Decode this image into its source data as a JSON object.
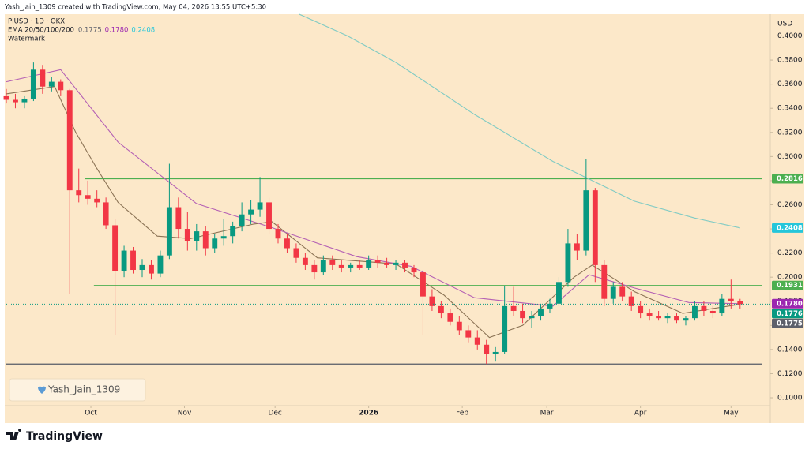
{
  "chart_data": {
    "type": "candlestick",
    "attribution": "Yash_Jain_1309 created with TradingView.com, May 04, 2026 13:55 UTC+5:30",
    "title": "PIUSD · 1D · OKX",
    "indicator": "EMA 20/50/100/200",
    "watermark_label": "Watermark",
    "currency": "USD",
    "up_color": "#089981",
    "down_color": "#f23645",
    "xlim": [
      -28,
      225
    ],
    "xticks": [
      {
        "value": 0,
        "label": "Oct"
      },
      {
        "value": 31,
        "label": "Nov"
      },
      {
        "value": 61,
        "label": "Dec"
      },
      {
        "value": 92,
        "label": "2026"
      },
      {
        "value": 123,
        "label": "Feb"
      },
      {
        "value": 151,
        "label": "Mar"
      },
      {
        "value": 182,
        "label": "Apr"
      },
      {
        "value": 212,
        "label": "May"
      }
    ],
    "ylim": [
      0.083,
      0.418
    ],
    "yticks": [
      {
        "value": 0.1,
        "label": "0.1000"
      },
      {
        "value": 0.12,
        "label": "0.1200"
      },
      {
        "value": 0.14,
        "label": "0.1400"
      },
      {
        "value": 0.16,
        "label": "0.1600"
      },
      {
        "value": 0.18,
        "label": "0.1800"
      },
      {
        "value": 0.2,
        "label": "0.2000"
      },
      {
        "value": 0.22,
        "label": "0.2200"
      },
      {
        "value": 0.24,
        "label": "0.2400"
      },
      {
        "value": 0.26,
        "label": "0.2600"
      },
      {
        "value": 0.28,
        "label": "0.2800"
      },
      {
        "value": 0.3,
        "label": "0.3000"
      },
      {
        "value": 0.32,
        "label": "0.3200"
      },
      {
        "value": 0.34,
        "label": "0.3400"
      },
      {
        "value": 0.36,
        "label": "0.3600"
      },
      {
        "value": 0.38,
        "label": "0.3800"
      },
      {
        "value": 0.4,
        "label": "0.4000"
      }
    ],
    "x": [
      -28,
      -25,
      -22,
      -19,
      -16,
      -13,
      -10,
      -7,
      -4,
      -1,
      2,
      5,
      8,
      11,
      14,
      17,
      20,
      23,
      26,
      29,
      32,
      35,
      38,
      41,
      44,
      47,
      50,
      53,
      56,
      59,
      62,
      65,
      68,
      71,
      74,
      77,
      80,
      83,
      86,
      89,
      92,
      95,
      98,
      101,
      104,
      107,
      110,
      113,
      116,
      119,
      122,
      125,
      128,
      131,
      134,
      137,
      140,
      143,
      146,
      149,
      152,
      155,
      158,
      161,
      164,
      167,
      170,
      173,
      176,
      179,
      182,
      185,
      188,
      191,
      194,
      197,
      200,
      203,
      206,
      209,
      212,
      215
    ],
    "candles": [
      [
        0.35,
        0.356,
        0.344,
        0.347
      ],
      [
        0.347,
        0.352,
        0.34,
        0.345
      ],
      [
        0.345,
        0.35,
        0.34,
        0.348
      ],
      [
        0.348,
        0.378,
        0.346,
        0.372
      ],
      [
        0.372,
        0.376,
        0.352,
        0.358
      ],
      [
        0.358,
        0.366,
        0.354,
        0.362
      ],
      [
        0.362,
        0.364,
        0.35,
        0.355
      ],
      [
        0.355,
        0.356,
        0.186,
        0.272
      ],
      [
        0.272,
        0.29,
        0.262,
        0.268
      ],
      [
        0.268,
        0.28,
        0.26,
        0.265
      ],
      [
        0.265,
        0.272,
        0.258,
        0.262
      ],
      [
        0.262,
        0.266,
        0.24,
        0.243
      ],
      [
        0.243,
        0.248,
        0.152,
        0.205
      ],
      [
        0.205,
        0.226,
        0.2,
        0.222
      ],
      [
        0.222,
        0.225,
        0.203,
        0.206
      ],
      [
        0.206,
        0.215,
        0.2,
        0.21
      ],
      [
        0.21,
        0.214,
        0.198,
        0.203
      ],
      [
        0.203,
        0.222,
        0.2,
        0.218
      ],
      [
        0.218,
        0.294,
        0.215,
        0.258
      ],
      [
        0.258,
        0.266,
        0.232,
        0.24
      ],
      [
        0.24,
        0.254,
        0.222,
        0.23
      ],
      [
        0.23,
        0.244,
        0.222,
        0.238
      ],
      [
        0.238,
        0.242,
        0.218,
        0.224
      ],
      [
        0.224,
        0.236,
        0.22,
        0.232
      ],
      [
        0.232,
        0.248,
        0.226,
        0.234
      ],
      [
        0.234,
        0.246,
        0.228,
        0.242
      ],
      [
        0.242,
        0.262,
        0.238,
        0.252
      ],
      [
        0.252,
        0.264,
        0.244,
        0.256
      ],
      [
        0.256,
        0.283,
        0.25,
        0.262
      ],
      [
        0.262,
        0.266,
        0.236,
        0.24
      ],
      [
        0.24,
        0.244,
        0.228,
        0.232
      ],
      [
        0.232,
        0.236,
        0.22,
        0.224
      ],
      [
        0.224,
        0.228,
        0.212,
        0.216
      ],
      [
        0.216,
        0.22,
        0.206,
        0.21
      ],
      [
        0.21,
        0.214,
        0.198,
        0.204
      ],
      [
        0.204,
        0.218,
        0.202,
        0.214
      ],
      [
        0.214,
        0.218,
        0.206,
        0.21
      ],
      [
        0.21,
        0.214,
        0.204,
        0.208
      ],
      [
        0.208,
        0.212,
        0.204,
        0.21
      ],
      [
        0.21,
        0.214,
        0.206,
        0.208
      ],
      [
        0.208,
        0.218,
        0.206,
        0.214
      ],
      [
        0.214,
        0.218,
        0.208,
        0.212
      ],
      [
        0.212,
        0.216,
        0.208,
        0.21
      ],
      [
        0.21,
        0.214,
        0.206,
        0.212
      ],
      [
        0.212,
        0.214,
        0.204,
        0.208
      ],
      [
        0.208,
        0.21,
        0.2,
        0.204
      ],
      [
        0.204,
        0.206,
        0.152,
        0.184
      ],
      [
        0.184,
        0.19,
        0.172,
        0.176
      ],
      [
        0.176,
        0.18,
        0.166,
        0.17
      ],
      [
        0.17,
        0.174,
        0.16,
        0.163
      ],
      [
        0.163,
        0.168,
        0.152,
        0.156
      ],
      [
        0.156,
        0.16,
        0.146,
        0.15
      ],
      [
        0.15,
        0.156,
        0.14,
        0.144
      ],
      [
        0.144,
        0.148,
        0.128,
        0.136
      ],
      [
        0.136,
        0.142,
        0.13,
        0.138
      ],
      [
        0.138,
        0.193,
        0.136,
        0.176
      ],
      [
        0.176,
        0.192,
        0.168,
        0.172
      ],
      [
        0.172,
        0.178,
        0.162,
        0.166
      ],
      [
        0.166,
        0.172,
        0.158,
        0.168
      ],
      [
        0.168,
        0.178,
        0.164,
        0.174
      ],
      [
        0.174,
        0.182,
        0.17,
        0.178
      ],
      [
        0.178,
        0.2,
        0.176,
        0.196
      ],
      [
        0.196,
        0.24,
        0.192,
        0.228
      ],
      [
        0.228,
        0.236,
        0.214,
        0.222
      ],
      [
        0.222,
        0.298,
        0.218,
        0.272
      ],
      [
        0.272,
        0.274,
        0.196,
        0.21
      ],
      [
        0.21,
        0.214,
        0.176,
        0.182
      ],
      [
        0.182,
        0.196,
        0.178,
        0.192
      ],
      [
        0.192,
        0.196,
        0.18,
        0.184
      ],
      [
        0.184,
        0.188,
        0.172,
        0.176
      ],
      [
        0.176,
        0.18,
        0.166,
        0.17
      ],
      [
        0.17,
        0.174,
        0.164,
        0.168
      ],
      [
        0.168,
        0.172,
        0.164,
        0.166
      ],
      [
        0.166,
        0.17,
        0.162,
        0.168
      ],
      [
        0.168,
        0.17,
        0.162,
        0.164
      ],
      [
        0.164,
        0.168,
        0.16,
        0.166
      ],
      [
        0.166,
        0.18,
        0.164,
        0.176
      ],
      [
        0.176,
        0.18,
        0.168,
        0.172
      ],
      [
        0.172,
        0.176,
        0.166,
        0.17
      ],
      [
        0.17,
        0.186,
        0.168,
        0.182
      ],
      [
        0.182,
        0.198,
        0.174,
        0.18
      ],
      [
        0.18,
        0.182,
        0.174,
        0.1776
      ]
    ],
    "emas": [
      {
        "color": "#8b7355",
        "tag_color": "#5d606b",
        "last_label": "0.1775",
        "x": [
          -28,
          -12,
          -5,
          2,
          9,
          22,
          33,
          54,
          60,
          75,
          101,
          117,
          132,
          143,
          160,
          166,
          180,
          196,
          215
        ],
        "values": [
          0.352,
          0.358,
          0.32,
          0.29,
          0.262,
          0.234,
          0.232,
          0.244,
          0.246,
          0.216,
          0.211,
          0.185,
          0.15,
          0.16,
          0.2,
          0.21,
          0.188,
          0.17,
          0.1775
        ]
      },
      {
        "color": "#b45fb4",
        "tag_color": "#9c27b0",
        "last_label": "0.1780",
        "x": [
          -28,
          -10,
          9,
          35,
          60,
          88,
          106,
          127,
          153,
          165,
          180,
          198,
          215
        ],
        "values": [
          0.362,
          0.372,
          0.312,
          0.261,
          0.241,
          0.217,
          0.209,
          0.183,
          0.176,
          0.202,
          0.191,
          0.179,
          0.178
        ]
      },
      {
        "color": "#80cbc4",
        "tag_color": "#26c6da",
        "last_label": "0.2408",
        "x": [
          69,
          85,
          101,
          127,
          153,
          180,
          200,
          215
        ],
        "values": [
          0.418,
          0.4,
          0.378,
          0.335,
          0.296,
          0.263,
          0.249,
          0.2408
        ]
      }
    ],
    "levels": [
      {
        "value": 0.2816,
        "from": -2,
        "color": "#4caf50",
        "label": "0.2816"
      },
      {
        "value": 0.1931,
        "from": 1,
        "color": "#4caf50",
        "label": "0.1931"
      },
      {
        "value": 0.128,
        "from": -28,
        "color": "#555b66"
      }
    ],
    "last_price": 0.1776,
    "last_color": "#089981"
  },
  "watermark_badge": "Yash_Jain_1309",
  "brand": "TradingView"
}
